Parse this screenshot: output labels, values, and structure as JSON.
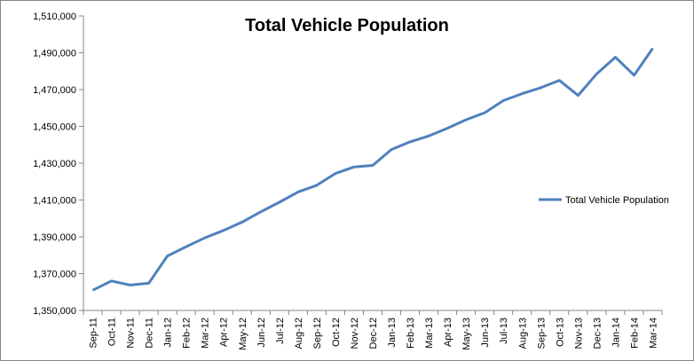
{
  "chart_data": {
    "type": "line",
    "title": "Total Vehicle Population",
    "xlabel": "",
    "ylabel": "",
    "ylim": [
      1350000,
      1510000
    ],
    "yticks": [
      "1,350,000",
      "1,370,000",
      "1,390,000",
      "1,410,000",
      "1,430,000",
      "1,450,000",
      "1,470,000",
      "1,490,000",
      "1,510,000"
    ],
    "categories": [
      "Sep-11",
      "Oct-11",
      "Nov-11",
      "Dec-11",
      "Jan-12",
      "Feb-12",
      "Mar-12",
      "Apr-12",
      "May-12",
      "Jun-12",
      "Jul-12",
      "Aug-12",
      "Sep-12",
      "Oct-12",
      "Nov-12",
      "Dec-12",
      "Jan-13",
      "Feb-13",
      "Mar-13",
      "Apr-13",
      "May-13",
      "Jun-13",
      "Jul-13",
      "Aug-13",
      "Sep-13",
      "Oct-13",
      "Nov-13",
      "Dec-13",
      "Jan-14",
      "Feb-14",
      "Mar-14"
    ],
    "series": [
      {
        "name": "Total Vehicle Population",
        "color": "#4f81bd",
        "values": [
          1361000,
          1366000,
          1363800,
          1364800,
          1379600,
          1384600,
          1389400,
          1393400,
          1398000,
          1403600,
          1408800,
          1414400,
          1418000,
          1424400,
          1428000,
          1428800,
          1437400,
          1441600,
          1444800,
          1449000,
          1453600,
          1457400,
          1464000,
          1467800,
          1471000,
          1475000,
          1466800,
          1478600,
          1487600,
          1477800,
          1492400
        ]
      }
    ],
    "grid": false,
    "legend": "right"
  }
}
